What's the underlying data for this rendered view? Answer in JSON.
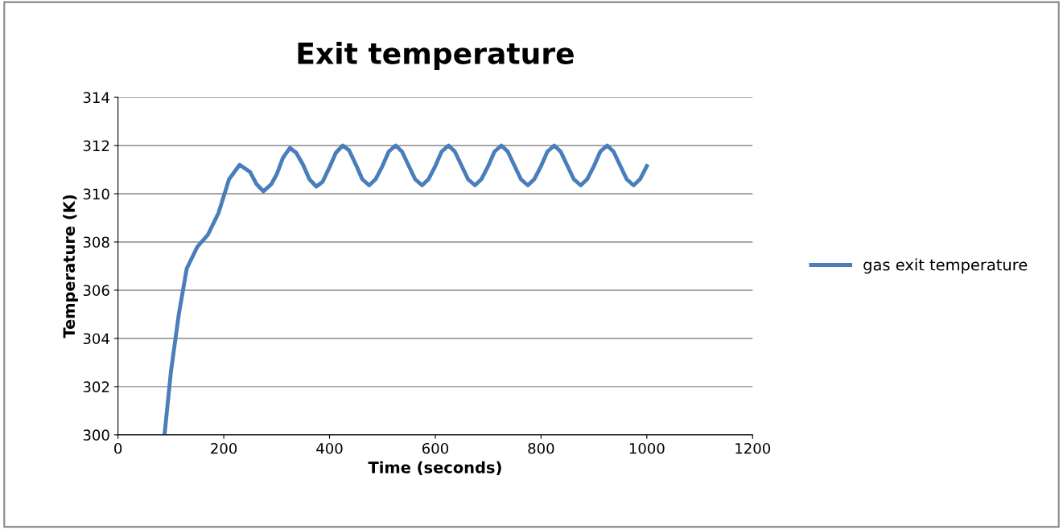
{
  "chart_data": {
    "type": "line",
    "title": "Exit temperature",
    "xlabel": "Time (seconds)",
    "ylabel": "Temperature (K)",
    "xlim": [
      0,
      1200
    ],
    "xticks": [
      0,
      200,
      400,
      600,
      800,
      1000,
      1200
    ],
    "ylim": [
      300,
      314
    ],
    "yticks": [
      300,
      302,
      304,
      306,
      308,
      310,
      312,
      314
    ],
    "grid": "y",
    "legend": "right",
    "marker": "none",
    "line_style": "solid",
    "series": [
      {
        "name": "gas exit temperature",
        "color": "#4a7ebb",
        "x": [
          88,
          100,
          115,
          130,
          150,
          170,
          190,
          210,
          230,
          250,
          262,
          275,
          290,
          300,
          312,
          325,
          337,
          350,
          362,
          375,
          387,
          400,
          412,
          425,
          437,
          450,
          462,
          475,
          487,
          500,
          512,
          525,
          537,
          550,
          562,
          575,
          587,
          600,
          612,
          625,
          637,
          650,
          662,
          675,
          687,
          700,
          712,
          725,
          737,
          750,
          762,
          775,
          787,
          800,
          812,
          825,
          837,
          850,
          862,
          875,
          887,
          900,
          912,
          925,
          937,
          950,
          962,
          975,
          987,
          1000
        ],
        "values": [
          300,
          302.6,
          305,
          306.9,
          307.8,
          308.3,
          309.2,
          310.6,
          311.2,
          310.9,
          310.4,
          310.1,
          310.4,
          310.8,
          311.5,
          311.9,
          311.7,
          311.2,
          310.6,
          310.3,
          310.5,
          311.1,
          311.7,
          312,
          311.8,
          311.2,
          310.6,
          310.35,
          310.6,
          311.15,
          311.75,
          312,
          311.75,
          311.15,
          310.6,
          310.35,
          310.6,
          311.15,
          311.75,
          312,
          311.75,
          311.15,
          310.6,
          310.35,
          310.6,
          311.15,
          311.75,
          312,
          311.75,
          311.15,
          310.6,
          310.35,
          310.6,
          311.15,
          311.75,
          312,
          311.75,
          311.15,
          310.6,
          310.35,
          310.6,
          311.15,
          311.75,
          312,
          311.75,
          311.15,
          310.6,
          310.35,
          310.6,
          311.15
        ]
      }
    ]
  }
}
